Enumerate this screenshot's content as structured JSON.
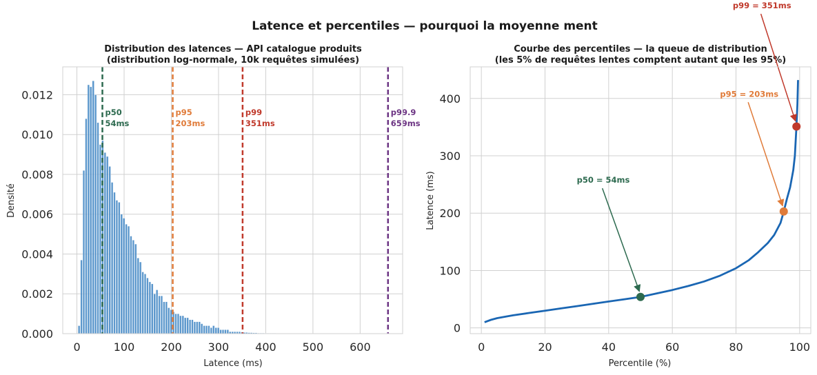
{
  "suptitle": "Latence et percentiles — pourquoi la moyenne ment",
  "chart_data": [
    {
      "type": "bar",
      "title_line1": "Distribution des latences — API catalogue produits",
      "title_line2": "(distribution log-normale, 10k requêtes simulées)",
      "xlabel": "Latence (ms)",
      "ylabel": "Densité",
      "xlim": [
        -30,
        690
      ],
      "ylim": [
        0,
        0.0134
      ],
      "xticks": [
        0,
        100,
        200,
        300,
        400,
        500,
        600
      ],
      "xtick_labels": [
        "0",
        "100",
        "200",
        "300",
        "400",
        "500",
        "600"
      ],
      "yticks": [
        0,
        0.002,
        0.004,
        0.006,
        0.008,
        0.01,
        0.012
      ],
      "ytick_labels": [
        "0.000",
        "0.002",
        "0.004",
        "0.006",
        "0.008",
        "0.010",
        "0.012"
      ],
      "grid": true,
      "bar_color": "#4a8cc7",
      "bin_width": 5.0,
      "bins_start": 2.5,
      "densities": [
        0.0004,
        0.0037,
        0.0082,
        0.0108,
        0.0125,
        0.0124,
        0.0127,
        0.012,
        0.0106,
        0.0095,
        0.0097,
        0.0091,
        0.0089,
        0.0084,
        0.0076,
        0.0071,
        0.0067,
        0.0066,
        0.006,
        0.0058,
        0.0055,
        0.0054,
        0.0049,
        0.0047,
        0.0045,
        0.0038,
        0.0036,
        0.0031,
        0.003,
        0.0028,
        0.0026,
        0.0025,
        0.002,
        0.0022,
        0.0019,
        0.0019,
        0.0016,
        0.0016,
        0.0013,
        0.0012,
        0.0011,
        0.001,
        0.001,
        0.0009,
        0.0009,
        0.0008,
        0.0008,
        0.0007,
        0.0007,
        0.0006,
        0.0006,
        0.0006,
        0.0005,
        0.0004,
        0.0004,
        0.0004,
        0.0003,
        0.0004,
        0.0003,
        0.0003,
        0.0002,
        0.0002,
        0.0002,
        0.0002,
        0.0001,
        0.0001,
        0.0001,
        0.0001,
        0.0001,
        8e-05,
        6e-05,
        6e-05,
        5e-05,
        5e-05,
        4e-05,
        4e-05,
        3e-05,
        3e-05,
        3e-05,
        2e-05,
        2e-05,
        2e-05,
        2e-05,
        2e-05,
        1e-05,
        1e-05,
        1e-05,
        1e-05,
        1e-05,
        1e-05
      ],
      "percentile_lines": [
        {
          "label": "p50",
          "value": 54,
          "text": "54ms",
          "color": "#2d6a4f"
        },
        {
          "label": "p95",
          "value": 203,
          "text": "203ms",
          "color": "#e07b39"
        },
        {
          "label": "p99",
          "value": 351,
          "text": "351ms",
          "color": "#c0392b"
        },
        {
          "label": "p99.9",
          "value": 659,
          "text": "659ms",
          "color": "#6c3483"
        }
      ]
    },
    {
      "type": "line",
      "title_line1": "Courbe des percentiles — la queue de distribution",
      "title_line2": "(les 5% de requêtes lentes comptent autant que les 95%)",
      "xlabel": "Percentile (%)",
      "ylabel": "Latence (ms)",
      "xlim": [
        -3.5,
        103.5
      ],
      "ylim": [
        -10,
        455
      ],
      "xticks": [
        0,
        20,
        40,
        60,
        80,
        100
      ],
      "xtick_labels": [
        "0",
        "20",
        "40",
        "60",
        "80",
        "100"
      ],
      "yticks": [
        0,
        100,
        200,
        300,
        400
      ],
      "ytick_labels": [
        "0",
        "100",
        "200",
        "300",
        "400"
      ],
      "grid": true,
      "line_color": "#1a66b3",
      "x": [
        1,
        3,
        5,
        8,
        10,
        15,
        20,
        25,
        30,
        35,
        40,
        45,
        50,
        55,
        60,
        65,
        70,
        75,
        80,
        84,
        87,
        90,
        92,
        94,
        95,
        96,
        97,
        98,
        98.5,
        99,
        99.3,
        99.5
      ],
      "y": [
        10,
        14,
        17,
        20,
        22,
        26,
        30,
        34,
        38,
        42,
        46,
        50,
        54,
        60,
        66,
        73,
        81,
        91,
        104,
        118,
        132,
        148,
        162,
        183,
        203,
        225,
        245,
        275,
        300,
        351,
        390,
        432
      ],
      "markers": [
        {
          "x": 50,
          "y": 54,
          "label": "p50 = 54ms",
          "color": "#2d6a4f",
          "text_x": 30,
          "text_y": 253
        },
        {
          "x": 95,
          "y": 203,
          "label": "p95 = 203ms",
          "color": "#e07b39",
          "text_x": 75,
          "text_y": 403
        },
        {
          "x": 99,
          "y": 351,
          "label": "p99 = 351ms",
          "color": "#c0392b",
          "text_x": 79,
          "text_y": 557
        }
      ]
    }
  ]
}
